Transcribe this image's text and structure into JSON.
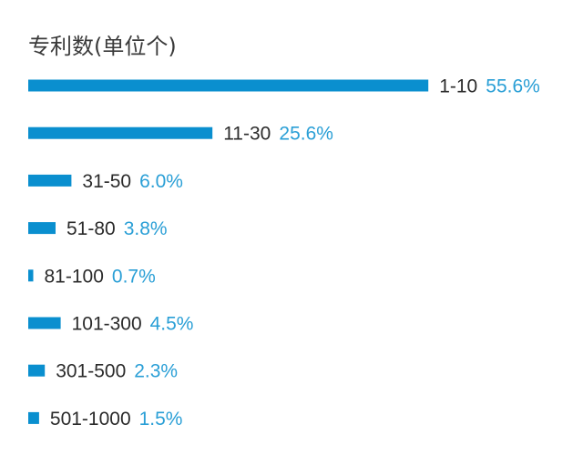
{
  "chart_data": {
    "type": "bar",
    "orientation": "horizontal",
    "title": "专利数(单位个)",
    "categories": [
      "1-10",
      "11-30",
      "31-50",
      "51-80",
      "81-100",
      "101-300",
      "301-500",
      "501-1000"
    ],
    "values": [
      55.6,
      25.6,
      6.0,
      3.8,
      0.7,
      4.5,
      2.3,
      1.5
    ],
    "value_labels": [
      "55.6%",
      "25.6%",
      "6.0%",
      "3.8%",
      "0.7%",
      "4.5%",
      "2.3%",
      "1.5%"
    ],
    "unit": "%",
    "grid": false,
    "legend": "none",
    "colors": {
      "bar": "#0a8fcf",
      "value_text": "#2a9fd6",
      "category_text": "#2b2b2b"
    }
  }
}
